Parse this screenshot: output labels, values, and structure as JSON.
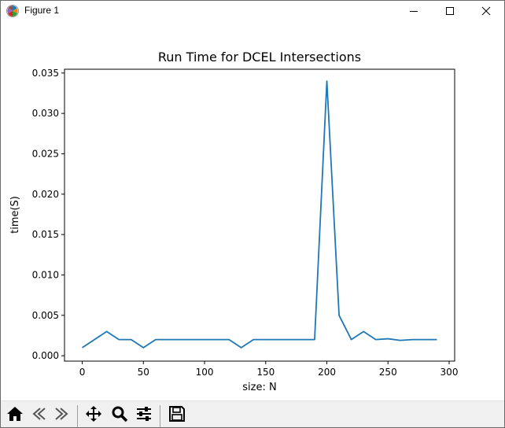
{
  "window": {
    "title": "Figure 1",
    "icons": [
      "matplotlib-logo-icon",
      "minimize-icon",
      "maximize-icon",
      "close-icon"
    ]
  },
  "toolbar": {
    "buttons": [
      "home-icon",
      "back-icon",
      "forward-icon",
      "pan-icon",
      "zoom-icon",
      "configure-subplots-icon",
      "save-icon"
    ]
  },
  "chart_data": {
    "type": "line",
    "title": "Run Time for DCEL Intersections",
    "xlabel": "size: N",
    "ylabel": "time(S)",
    "xlim": [
      -14.5,
      304.5
    ],
    "ylim": [
      -0.00067,
      0.03547
    ],
    "x_ticks": [
      0,
      50,
      100,
      150,
      200,
      250,
      300
    ],
    "x_tick_labels": [
      "0",
      "50",
      "100",
      "150",
      "200",
      "250",
      "300"
    ],
    "y_ticks": [
      0.0,
      0.005,
      0.01,
      0.015,
      0.02,
      0.025,
      0.03,
      0.035
    ],
    "y_tick_labels": [
      "0.000",
      "0.005",
      "0.010",
      "0.015",
      "0.020",
      "0.025",
      "0.030",
      "0.035"
    ],
    "grid": false,
    "series": [
      {
        "color": "#1f77b4",
        "x": [
          0,
          10,
          20,
          30,
          40,
          50,
          60,
          70,
          80,
          90,
          100,
          110,
          120,
          130,
          140,
          150,
          160,
          170,
          180,
          190,
          200,
          210,
          220,
          230,
          240,
          250,
          260,
          270,
          280,
          290
        ],
        "y": [
          0.001,
          0.002,
          0.003,
          0.002,
          0.002,
          0.001,
          0.002,
          0.002,
          0.002,
          0.002,
          0.002,
          0.002,
          0.002,
          0.001,
          0.002,
          0.002,
          0.002,
          0.002,
          0.002,
          0.002,
          0.034,
          0.005,
          0.002,
          0.003,
          0.002,
          0.0021,
          0.0019,
          0.002,
          0.002,
          0.002
        ]
      }
    ]
  }
}
